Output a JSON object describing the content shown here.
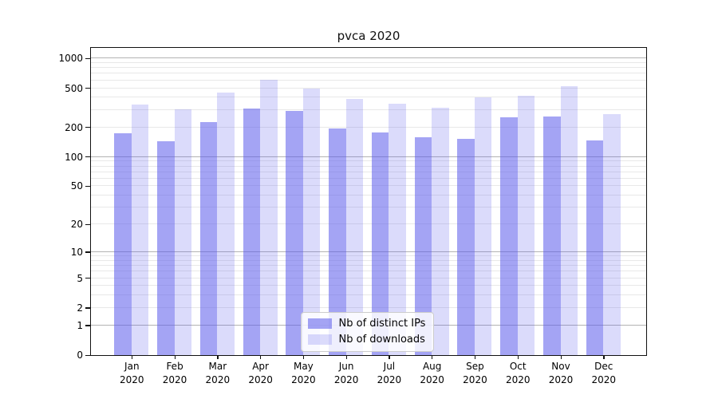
{
  "chart_data": {
    "type": "bar",
    "title": "pvca 2020",
    "categories": [
      "Jan 2020",
      "Feb 2020",
      "Mar 2020",
      "Apr 2020",
      "May 2020",
      "Jun 2020",
      "Jul 2020",
      "Aug 2020",
      "Sep 2020",
      "Oct 2020",
      "Nov 2020",
      "Dec 2020"
    ],
    "series": [
      {
        "name": "Nb of distinct IPs",
        "color": "rgba(90,90,235,0.55)",
        "values": [
          172,
          144,
          223,
          307,
          292,
          195,
          176,
          156,
          152,
          250,
          258,
          145
        ]
      },
      {
        "name": "Nb of downloads",
        "color": "rgba(90,90,235,0.22)",
        "values": [
          337,
          301,
          445,
          607,
          489,
          382,
          346,
          313,
          398,
          416,
          520,
          268
        ]
      }
    ],
    "yscale": "log1p",
    "ylim": [
      0,
      1280
    ],
    "yticks": [
      0,
      1,
      2,
      5,
      10,
      20,
      50,
      100,
      200,
      500,
      1000
    ],
    "grid_major": [
      1,
      10,
      100,
      1000
    ],
    "grid": "on",
    "legend_position": "lower-center",
    "colors": {
      "bar_dark": "#a8a8f2",
      "bar_light": "#dcdcf8",
      "grid_major": "#b3b3b3",
      "grid_minor": "#e8e8e8"
    }
  }
}
